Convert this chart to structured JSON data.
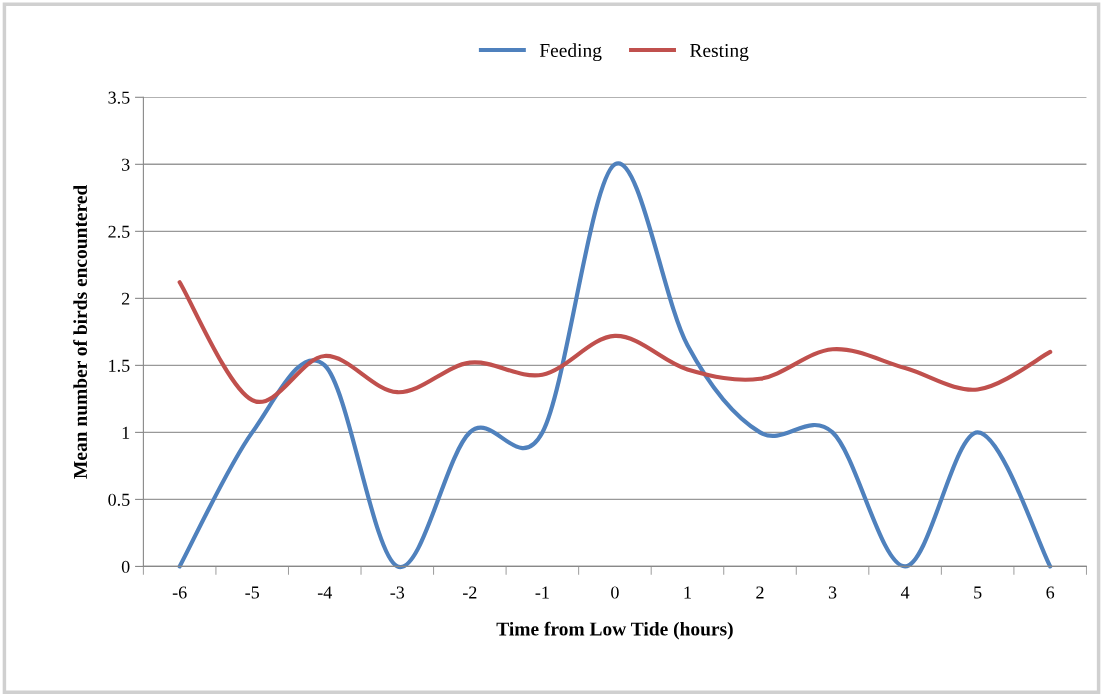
{
  "chart_data": {
    "type": "line",
    "xlabel": "Time from Low Tide (hours)",
    "ylabel": "Mean number of birds encountered",
    "categories": [
      "-6",
      "-5",
      "-4",
      "-3",
      "-2",
      "-1",
      "0",
      "1",
      "2",
      "3",
      "4",
      "5",
      "6"
    ],
    "series": [
      {
        "name": "Feeding",
        "color": "#4f81bd",
        "values": [
          0,
          1,
          1.5,
          0,
          1,
          1,
          3,
          1.65,
          1,
          1,
          0,
          1,
          0
        ]
      },
      {
        "name": "Resting",
        "color": "#c0504d",
        "values": [
          2.12,
          1.24,
          1.57,
          1.3,
          1.52,
          1.43,
          1.72,
          1.47,
          1.4,
          1.62,
          1.48,
          1.32,
          1.6
        ]
      }
    ],
    "ylim": [
      0,
      3.5
    ],
    "yticks": [
      0,
      0.5,
      1,
      1.5,
      2,
      2.5,
      3,
      3.5
    ],
    "grid": "y",
    "legend": "top",
    "marker": "none",
    "line_style": "solid"
  }
}
